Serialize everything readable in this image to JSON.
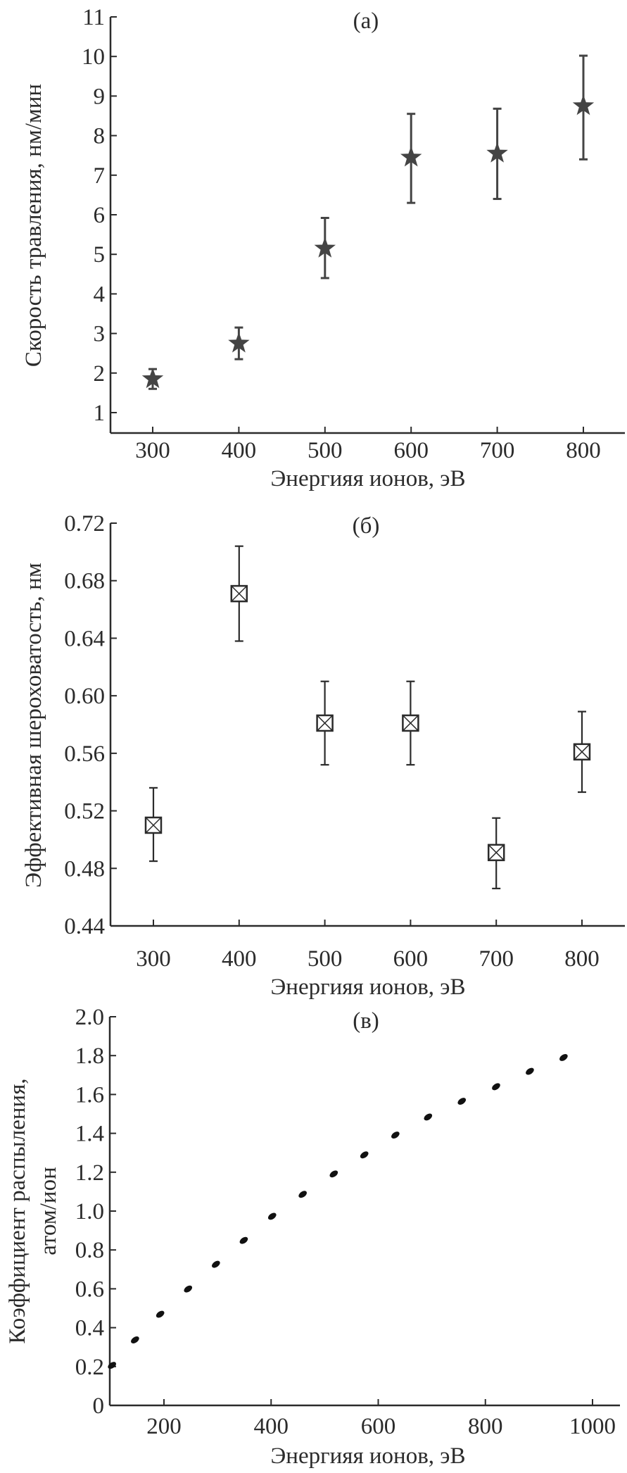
{
  "colors": {
    "ink": "#2b2b2b",
    "marker": "#444444"
  },
  "chart_data": [
    {
      "type": "scatter",
      "panel_label": "(a)",
      "xlabel": "Энергияя ионов, эВ",
      "ylabel": "Скорость травления, нм/мин",
      "xlim": [
        250,
        850
      ],
      "ylim": [
        0.5,
        11
      ],
      "xticks": [
        "300",
        "400",
        "500",
        "600",
        "700",
        "800"
      ],
      "xtick_values": [
        300,
        400,
        500,
        600,
        700,
        800
      ],
      "yticks": [
        "1",
        "2",
        "3",
        "4",
        "5",
        "6",
        "7",
        "8",
        "9",
        "10",
        "11"
      ],
      "ytick_values": [
        1,
        2,
        3,
        4,
        5,
        6,
        7,
        8,
        9,
        10,
        11
      ],
      "marker": "star",
      "x": [
        300,
        400,
        500,
        600,
        700,
        800
      ],
      "y": [
        1.85,
        2.75,
        5.15,
        7.45,
        7.55,
        8.75
      ],
      "err_low": [
        1.6,
        2.35,
        4.4,
        6.3,
        6.4,
        7.4
      ],
      "err_high": [
        2.1,
        3.15,
        5.92,
        8.55,
        8.68,
        10.02
      ]
    },
    {
      "type": "scatter",
      "panel_label": "(б)",
      "xlabel": "Энергияя ионов, эВ",
      "ylabel": "Эффективная шероховатость, нм",
      "xlim": [
        250,
        850
      ],
      "ylim": [
        0.44,
        0.72
      ],
      "xticks": [
        "300",
        "400",
        "500",
        "600",
        "700",
        "800"
      ],
      "xtick_values": [
        300,
        400,
        500,
        600,
        700,
        800
      ],
      "yticks": [
        "0.44",
        "0.48",
        "0.52",
        "0.56",
        "0.60",
        "0.64",
        "0.68",
        "0.72"
      ],
      "ytick_values": [
        0.44,
        0.48,
        0.52,
        0.56,
        0.6,
        0.64,
        0.68,
        0.72
      ],
      "marker": "crossed-square",
      "x": [
        300,
        400,
        500,
        600,
        700,
        800
      ],
      "y": [
        0.51,
        0.671,
        0.581,
        0.581,
        0.491,
        0.561
      ],
      "err_low": [
        0.485,
        0.638,
        0.552,
        0.552,
        0.466,
        0.533
      ],
      "err_high": [
        0.536,
        0.704,
        0.61,
        0.61,
        0.515,
        0.589
      ]
    },
    {
      "type": "scatter",
      "panel_label": "(в)",
      "xlabel": "Энергияя ионов, эВ",
      "ylabel": [
        "Коэффициент распыления,",
        "атом/ион"
      ],
      "xlim": [
        100,
        1050
      ],
      "ylim": [
        0,
        2.0
      ],
      "xticks": [
        "200",
        "400",
        "600",
        "800",
        "1000"
      ],
      "xtick_values": [
        200,
        400,
        600,
        800,
        1000
      ],
      "yticks": [
        "0",
        "0.2",
        "0.4",
        "0.6",
        "0.8",
        "1.0",
        "1.2",
        "1.4",
        "1.6",
        "1.8",
        "2.0"
      ],
      "ytick_values": [
        0,
        0.2,
        0.4,
        0.6,
        0.8,
        1.0,
        1.2,
        1.4,
        1.6,
        1.8,
        2.0
      ],
      "marker": "dot",
      "x": [
        103,
        146,
        193,
        245,
        297,
        349,
        402,
        459,
        517,
        574,
        632,
        693,
        756,
        820,
        883,
        946
      ],
      "y": [
        0.206,
        0.337,
        0.469,
        0.599,
        0.726,
        0.849,
        0.973,
        1.086,
        1.191,
        1.289,
        1.391,
        1.484,
        1.565,
        1.64,
        1.719,
        1.79
      ]
    }
  ]
}
